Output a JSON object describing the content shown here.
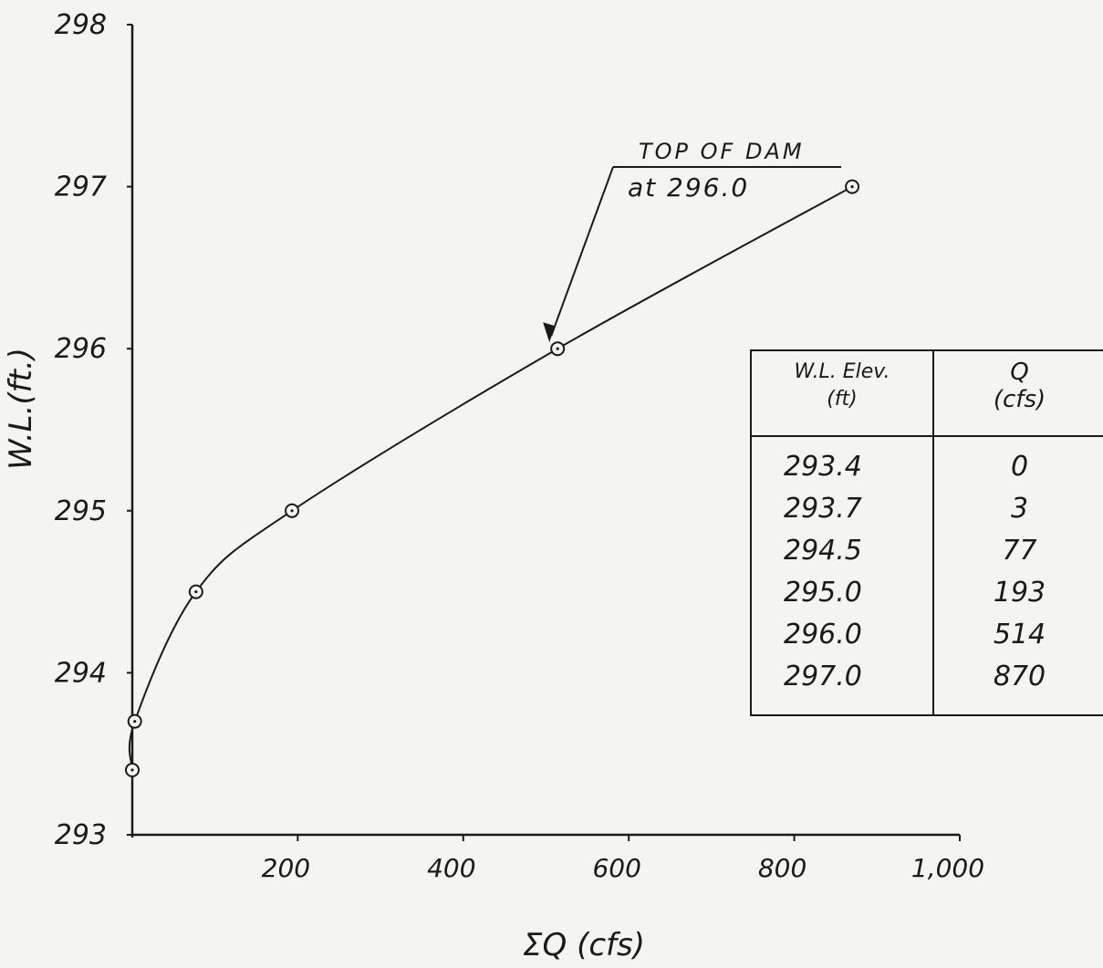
{
  "chart_data": {
    "type": "line",
    "title": "",
    "xlabel": "ΣQ (cfs)",
    "ylabel": "W.L.(ft.)",
    "xlim": [
      0,
      1000
    ],
    "ylim": [
      293,
      298
    ],
    "x_ticks": [
      200,
      400,
      600,
      800,
      1000
    ],
    "x_tick_labels": [
      "200",
      "400",
      "600",
      "800",
      "1,000"
    ],
    "y_ticks": [
      293,
      294,
      295,
      296,
      297,
      298
    ],
    "y_tick_labels": [
      "293",
      "294",
      "295",
      "296",
      "297",
      "298"
    ],
    "grid": false,
    "series": [
      {
        "x": [
          0,
          3,
          77,
          193,
          514,
          870
        ],
        "y": [
          293.4,
          293.7,
          294.5,
          295.0,
          296.0,
          297.0
        ]
      }
    ],
    "annotations": [
      {
        "text_line1": "TOP OF DAM",
        "text_line2": "at 296.0",
        "x": 514,
        "y": 296.0
      }
    ],
    "table": {
      "headers": [
        "W.L. Elev. (ft)",
        "Q (cfs)"
      ],
      "header_col1_line1": "W.L. Elev.",
      "header_col1_line2": "(ft)",
      "header_col2_line1": "Q",
      "header_col2_line2": "(cfs)",
      "rows": [
        [
          "293.4",
          "0"
        ],
        [
          "293.7",
          "3"
        ],
        [
          "294.5",
          "77"
        ],
        [
          "295.0",
          "193"
        ],
        [
          "296.0",
          "514"
        ],
        [
          "297.0",
          "870"
        ]
      ]
    }
  }
}
